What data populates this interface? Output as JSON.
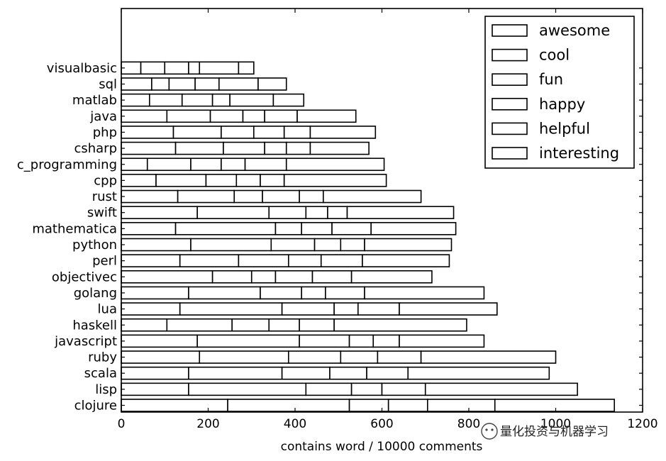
{
  "chart_data": {
    "type": "bar",
    "orientation": "horizontal",
    "stacked": true,
    "xlabel": "contains word / 10000 comments",
    "xlim": [
      0,
      1200
    ],
    "xticks": [
      "0",
      "200",
      "400",
      "600",
      "800",
      "1000",
      "1200"
    ],
    "grid": false,
    "legend_position": "top-right",
    "categories": [
      "clojure",
      "lisp",
      "scala",
      "ruby",
      "javascript",
      "haskell",
      "lua",
      "golang",
      "objectivec",
      "perl",
      "python",
      "mathematica",
      "swift",
      "rust",
      "cpp",
      "c_programming",
      "csharp",
      "php",
      "java",
      "matlab",
      "sql",
      "visualbasic"
    ],
    "series": [
      {
        "name": "awesome",
        "values": [
          245,
          155,
          155,
          180,
          175,
          105,
          135,
          155,
          210,
          135,
          160,
          125,
          175,
          130,
          80,
          60,
          125,
          120,
          105,
          65,
          70,
          45
        ]
      },
      {
        "name": "cool",
        "values": [
          280,
          270,
          215,
          205,
          235,
          150,
          235,
          165,
          90,
          135,
          185,
          230,
          165,
          130,
          115,
          100,
          110,
          110,
          100,
          75,
          40,
          55
        ]
      },
      {
        "name": "fun",
        "values": [
          90,
          105,
          110,
          120,
          115,
          85,
          120,
          95,
          55,
          115,
          100,
          60,
          85,
          65,
          70,
          70,
          95,
          75,
          75,
          70,
          60,
          55
        ]
      },
      {
        "name": "happy",
        "values": [
          90,
          70,
          85,
          85,
          55,
          70,
          55,
          55,
          85,
          75,
          60,
          70,
          50,
          85,
          55,
          55,
          50,
          70,
          50,
          40,
          55,
          25
        ]
      },
      {
        "name": "helpful",
        "values": [
          155,
          100,
          95,
          100,
          60,
          80,
          95,
          90,
          90,
          95,
          55,
          90,
          45,
          55,
          55,
          95,
          55,
          60,
          75,
          100,
          90,
          90
        ]
      },
      {
        "name": "interesting",
        "values": [
          275,
          350,
          325,
          310,
          195,
          305,
          225,
          275,
          185,
          200,
          200,
          195,
          245,
          225,
          235,
          225,
          135,
          150,
          135,
          70,
          65,
          35
        ]
      }
    ]
  },
  "watermark": {
    "text": "量化投资与机器学习"
  },
  "colors": {
    "bar_fill": "#ffffff",
    "bar_edge": "#000000",
    "background": "#ffffff"
  }
}
